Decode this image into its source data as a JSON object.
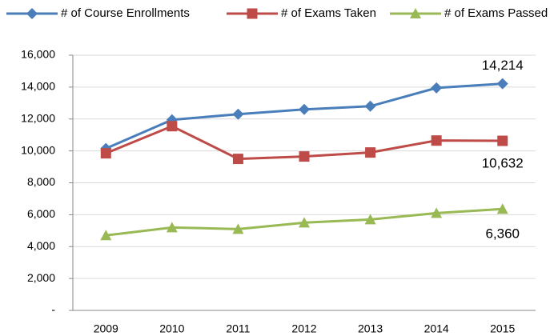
{
  "chart_data": {
    "type": "line",
    "categories": [
      "2009",
      "2010",
      "2011",
      "2012",
      "2013",
      "2014",
      "2015"
    ],
    "series": [
      {
        "name": "# of Course Enrollments",
        "color": "#4a7ebb",
        "marker": "diamond",
        "values": [
          10150,
          11950,
          12300,
          12600,
          12800,
          13950,
          14214
        ],
        "value_labels": [
          null,
          null,
          null,
          null,
          null,
          null,
          "14,214"
        ]
      },
      {
        "name": "# of Exams Taken",
        "color": "#be4b48",
        "marker": "square",
        "values": [
          9850,
          11550,
          9500,
          9650,
          9900,
          10650,
          10632
        ],
        "value_labels": [
          null,
          null,
          null,
          null,
          null,
          null,
          "10,632"
        ]
      },
      {
        "name": "# of Exams Passed",
        "color": "#98b954",
        "marker": "triangle",
        "values": [
          4700,
          5200,
          5100,
          5500,
          5700,
          6100,
          6360
        ],
        "value_labels": [
          null,
          null,
          null,
          null,
          null,
          null,
          "6,360"
        ]
      }
    ],
    "ylim": [
      0,
      16000
    ],
    "yticks": [
      {
        "value": 0,
        "label": "-"
      },
      {
        "value": 2000,
        "label": "2,000"
      },
      {
        "value": 4000,
        "label": "4,000"
      },
      {
        "value": 6000,
        "label": "6,000"
      },
      {
        "value": 8000,
        "label": "8,000"
      },
      {
        "value": 10000,
        "label": "10,000"
      },
      {
        "value": 12000,
        "label": "12,000"
      },
      {
        "value": 14000,
        "label": "14,000"
      },
      {
        "value": 16000,
        "label": "16,000"
      }
    ],
    "grid": true,
    "legend": "top"
  }
}
